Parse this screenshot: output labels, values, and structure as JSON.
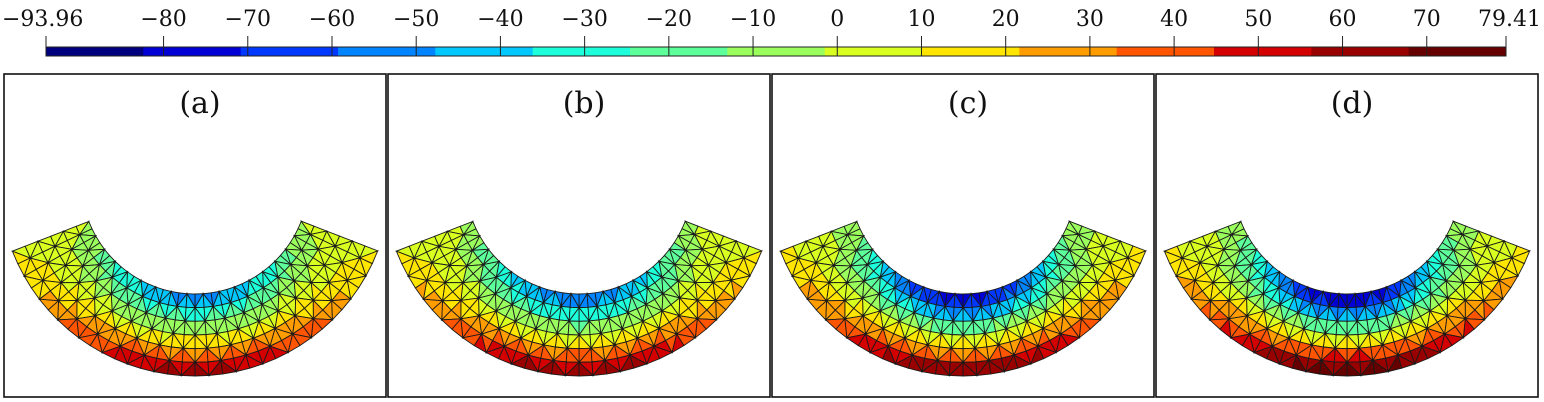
{
  "colorbar": {
    "ticks": [
      {
        "value": -93.96,
        "label": "−93.96"
      },
      {
        "value": -80,
        "label": "−80"
      },
      {
        "value": -70,
        "label": "−70"
      },
      {
        "value": -60,
        "label": "−60"
      },
      {
        "value": -50,
        "label": "−50"
      },
      {
        "value": -40,
        "label": "−40"
      },
      {
        "value": -30,
        "label": "−30"
      },
      {
        "value": -20,
        "label": "−20"
      },
      {
        "value": -10,
        "label": "−10"
      },
      {
        "value": 0,
        "label": "0"
      },
      {
        "value": 10,
        "label": "10"
      },
      {
        "value": 20,
        "label": "20"
      },
      {
        "value": 30,
        "label": "30"
      },
      {
        "value": 40,
        "label": "40"
      },
      {
        "value": 50,
        "label": "50"
      },
      {
        "value": 60,
        "label": "60"
      },
      {
        "value": 70,
        "label": "70"
      },
      {
        "value": 79.41,
        "label": "79.41"
      }
    ],
    "min": -93.96,
    "max": 79.41,
    "bands": [
      "#00007f",
      "#0000d4",
      "#0038ff",
      "#0084ff",
      "#00c8ff",
      "#1dffda",
      "#5dff9a",
      "#9aff5d",
      "#d8ff1f",
      "#ffe500",
      "#ff9c00",
      "#ff5400",
      "#d40000",
      "#990000",
      "#660000"
    ]
  },
  "panels": [
    {
      "label": "(a)",
      "negative_peak": -60,
      "positive_peak": 62
    },
    {
      "label": "(b)",
      "negative_peak": -66,
      "positive_peak": 66
    },
    {
      "label": "(c)",
      "negative_peak": -88,
      "positive_peak": 72
    },
    {
      "label": "(d)",
      "negative_peak": -94,
      "positive_peak": 79
    }
  ]
}
